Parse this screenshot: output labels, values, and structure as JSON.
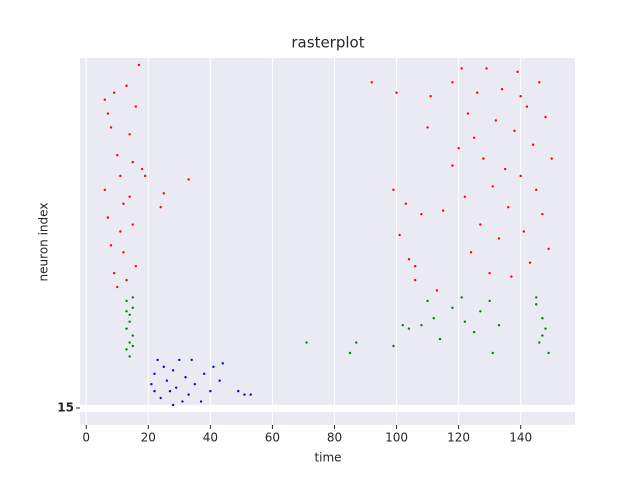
{
  "chart_data": {
    "type": "scatter",
    "title": "rasterplot",
    "x_label": "time",
    "y_label": "neuron index",
    "xlim": [
      -2,
      157.5
    ],
    "xticks": [
      0,
      20,
      40,
      60,
      80,
      100,
      120,
      140
    ],
    "ylim": [
      0,
      100
    ],
    "yticks": [
      {
        "value": 0,
        "label": "15"
      }
    ],
    "grid": true,
    "series": [
      {
        "name": "red",
        "color": "#ff0000",
        "x": [
          6,
          7,
          8,
          9,
          10,
          11,
          12,
          13,
          14,
          15,
          16,
          17,
          6,
          7,
          8,
          9,
          10,
          11,
          12,
          13,
          14,
          15,
          16,
          18,
          19,
          24,
          25,
          33,
          92,
          99,
          100,
          101,
          103,
          104,
          106,
          108,
          110,
          111,
          113,
          115,
          118,
          120,
          121,
          122,
          123,
          124,
          125,
          126,
          127,
          128,
          129,
          130,
          131,
          132,
          133,
          134,
          135,
          136,
          137,
          138,
          139,
          140,
          141,
          142,
          143,
          144,
          145,
          146,
          147,
          148,
          149,
          150,
          106,
          118,
          140
        ],
        "values": [
          88,
          84,
          80,
          90,
          72,
          66,
          58,
          92,
          78,
          70,
          86,
          98,
          62,
          54,
          46,
          38,
          34,
          50,
          44,
          36,
          60,
          52,
          40,
          68,
          66,
          57,
          61,
          65,
          93,
          62,
          90,
          49,
          58,
          42,
          36,
          55,
          80,
          89,
          33,
          56,
          69,
          74,
          97,
          60,
          84,
          44,
          77,
          90,
          52,
          71,
          97,
          38,
          63,
          82,
          48,
          91,
          68,
          57,
          37,
          79,
          96,
          66,
          50,
          86,
          41,
          75,
          62,
          93,
          55,
          83,
          45,
          71,
          40,
          93,
          89
        ]
      },
      {
        "name": "green",
        "color": "#008000",
        "x": [
          13,
          14,
          13,
          14,
          15,
          13,
          15,
          14,
          15,
          13,
          14,
          15,
          71,
          85,
          87,
          99,
          102,
          104,
          108,
          110,
          112,
          114,
          118,
          121,
          122,
          125,
          127,
          130,
          131,
          133,
          145,
          146,
          147,
          148,
          149,
          145,
          147
        ],
        "values": [
          30,
          26,
          22,
          18,
          28,
          16,
          20,
          24,
          31,
          27,
          14,
          17,
          18,
          15,
          18,
          17,
          23,
          22,
          23,
          30,
          25,
          19,
          28,
          31,
          24,
          21,
          27,
          30,
          15,
          23,
          29,
          18,
          25,
          22,
          15,
          31,
          20
        ]
      },
      {
        "name": "blue",
        "color": "#0000ff",
        "x": [
          21,
          22,
          23,
          24,
          25,
          26,
          27,
          28,
          29,
          30,
          31,
          32,
          33,
          34,
          35,
          37,
          38,
          40,
          41,
          43,
          44,
          49,
          51,
          53,
          28,
          22
        ],
        "values": [
          6,
          9,
          13,
          2,
          11,
          7,
          4,
          10,
          5,
          13,
          1,
          8,
          3,
          13,
          6,
          1,
          9,
          4,
          11,
          7,
          12,
          4,
          3,
          3,
          0,
          4
        ]
      }
    ]
  }
}
